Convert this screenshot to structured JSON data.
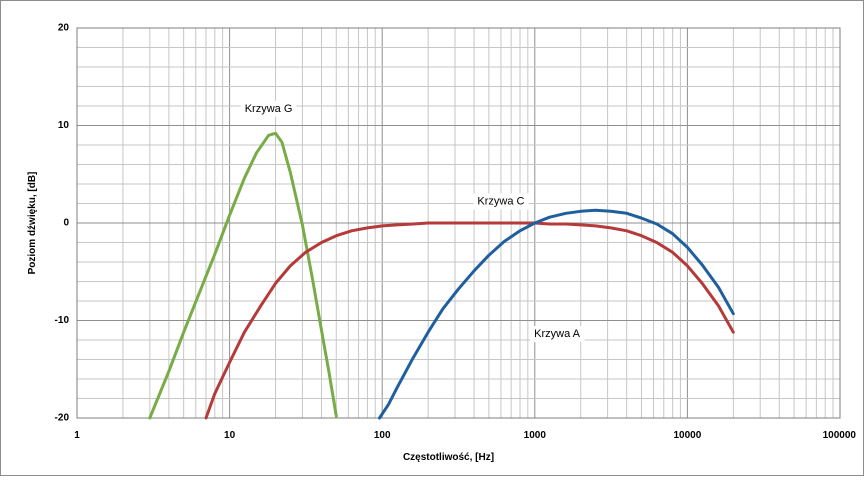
{
  "chart_data": {
    "type": "line",
    "title": "",
    "xlabel": "Częstotliwość, [Hz]",
    "ylabel": "Poziom dźwięku, [dB]",
    "x_scale": "log",
    "xlim": [
      1,
      100000
    ],
    "ylim": [
      -20,
      20
    ],
    "x_tick_labels": [
      "1",
      "10",
      "100",
      "1000",
      "10000",
      "100000"
    ],
    "y_tick_labels": [
      "20",
      "10",
      "0",
      "-10",
      "-20"
    ],
    "grid": true,
    "legend": "none",
    "series": [
      {
        "name": "Krzywa G",
        "color": "#77ac46",
        "x": [
          3,
          4,
          5,
          6,
          8,
          10,
          12.5,
          15,
          18,
          20,
          22,
          25,
          30,
          35,
          40,
          45,
          50
        ],
        "y": [
          -20,
          -15.2,
          -11.2,
          -8.1,
          -3.2,
          0.8,
          4.6,
          7.2,
          9,
          9.2,
          8.3,
          5.2,
          -0.2,
          -5.8,
          -11,
          -15.5,
          -19.8
        ]
      },
      {
        "name": "Krzywa C",
        "color": "#b53a3a",
        "x": [
          7,
          8,
          10,
          12.5,
          16,
          20,
          25,
          31.5,
          40,
          50,
          63,
          80,
          100,
          125,
          160,
          200,
          250,
          315,
          400,
          500,
          630,
          800,
          1000,
          1250,
          1600,
          2000,
          2500,
          3150,
          4000,
          5000,
          6300,
          8000,
          10000,
          12500,
          16000,
          20000
        ],
        "y": [
          -20,
          -17.5,
          -14.3,
          -11.2,
          -8.5,
          -6.2,
          -4.4,
          -3,
          -2,
          -1.3,
          -0.8,
          -0.5,
          -0.3,
          -0.2,
          -0.1,
          0,
          0,
          0,
          0,
          0,
          0,
          0,
          0,
          -0.1,
          -0.1,
          -0.2,
          -0.3,
          -0.5,
          -0.8,
          -1.3,
          -2,
          -3,
          -4.4,
          -6.2,
          -8.5,
          -11.2
        ]
      },
      {
        "name": "Krzywa A",
        "color": "#1f5f9e",
        "x": [
          96,
          110,
          125,
          160,
          200,
          250,
          315,
          400,
          500,
          630,
          800,
          1000,
          1250,
          1600,
          2000,
          2500,
          3150,
          4000,
          5000,
          6300,
          8000,
          10000,
          12500,
          16000,
          20000
        ],
        "y": [
          -20,
          -18.6,
          -16.9,
          -13.8,
          -11.2,
          -8.8,
          -6.8,
          -4.9,
          -3.3,
          -1.9,
          -0.8,
          0,
          0.6,
          1,
          1.2,
          1.3,
          1.2,
          1,
          0.5,
          -0.1,
          -1.1,
          -2.5,
          -4.3,
          -6.6,
          -9.3
        ]
      }
    ],
    "annotations": [
      {
        "text": "Krzywa G",
        "series": "Krzywa G",
        "x": 18,
        "y": 11.7
      },
      {
        "text": "Krzywa C",
        "series": "Krzywa C",
        "x": 600,
        "y": 2.2
      },
      {
        "text": "Krzywa A",
        "series": "Krzywa A",
        "x": 1400,
        "y": -11.4
      }
    ]
  }
}
